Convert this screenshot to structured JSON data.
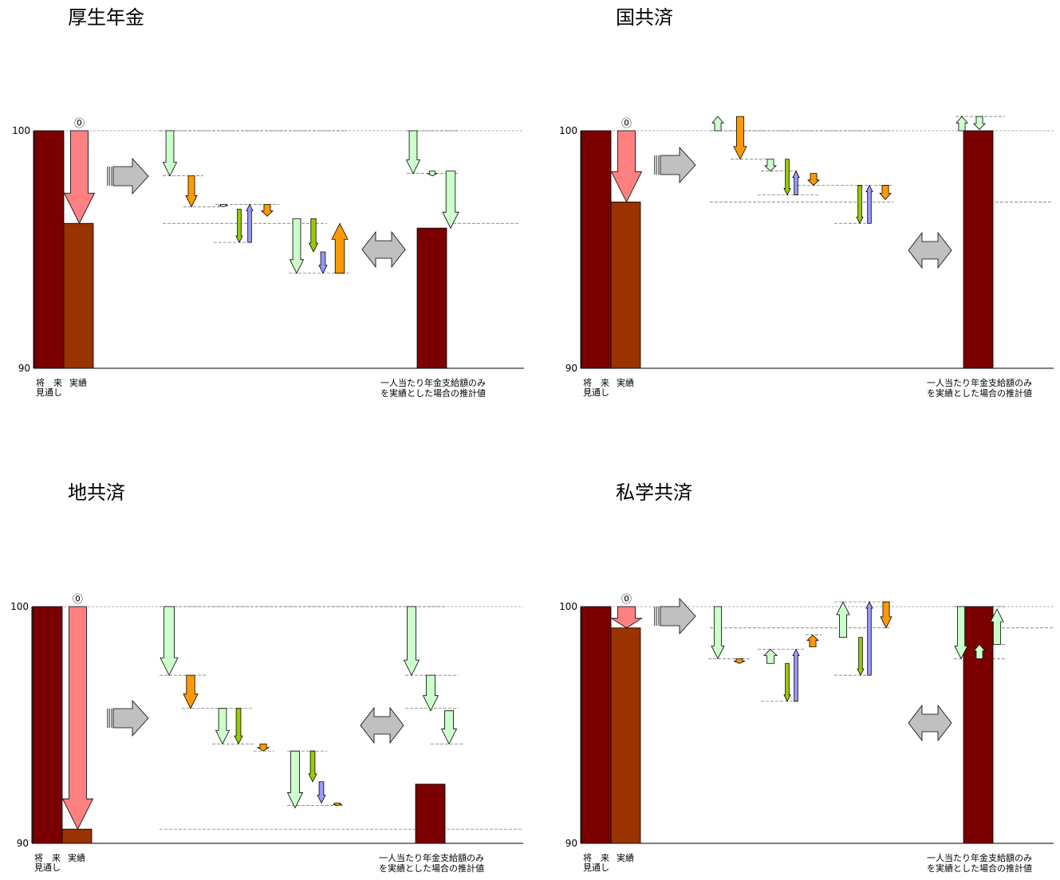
{
  "colors": {
    "bar_dark": "#7b0000",
    "bar_brown": "#993300",
    "salmon": "#ff8080",
    "light_green": "#ccffcc",
    "olive": "#99cc00",
    "lavender": "#9999ff",
    "orange": "#ff9900",
    "gray": "#c0c0c0"
  },
  "labels": {
    "zero_marker": "⓪",
    "cat_forecast_line1": "将　来",
    "cat_forecast_line2": "見通し",
    "cat_actual": "実績",
    "cat_estimate_line1": "一人当たり年金支給額のみ",
    "cat_estimate_line2": "を実績とした場合の推計値"
  },
  "chart_data": [
    {
      "type": "bar",
      "title": "厚生年金",
      "yticks": [
        "100",
        "90"
      ],
      "ylim": [
        90,
        100
      ],
      "grid": false,
      "categories": [
        "将来見通し",
        "実績",
        "一人当たり年金支給額のみを実績とした場合の推計値"
      ],
      "values": [
        100,
        96.1,
        95.9
      ]
    },
    {
      "type": "bar",
      "title": "国共済",
      "yticks": [
        "100",
        "90"
      ],
      "ylim": [
        90,
        100
      ],
      "grid": false,
      "categories": [
        "将来見通し",
        "実績",
        "一人当たり年金支給額のみを実績とした場合の推計値"
      ],
      "values": [
        100,
        97.0,
        100.0
      ]
    },
    {
      "type": "bar",
      "title": "地共済",
      "yticks": [
        "100",
        "90"
      ],
      "ylim": [
        90,
        100
      ],
      "grid": false,
      "categories": [
        "将来見通し",
        "実績",
        "一人当たり年金支給額のみを実績とした場合の推計値"
      ],
      "values": [
        100,
        90.6,
        92.5
      ]
    },
    {
      "type": "bar",
      "title": "私学共済",
      "yticks": [
        "100",
        "90"
      ],
      "ylim": [
        90,
        100
      ],
      "grid": false,
      "categories": [
        "将来見通し",
        "実績",
        "一人当たり年金支給額のみを実績とした場合の推計値"
      ],
      "values": [
        100,
        99.1,
        100.0
      ]
    }
  ]
}
